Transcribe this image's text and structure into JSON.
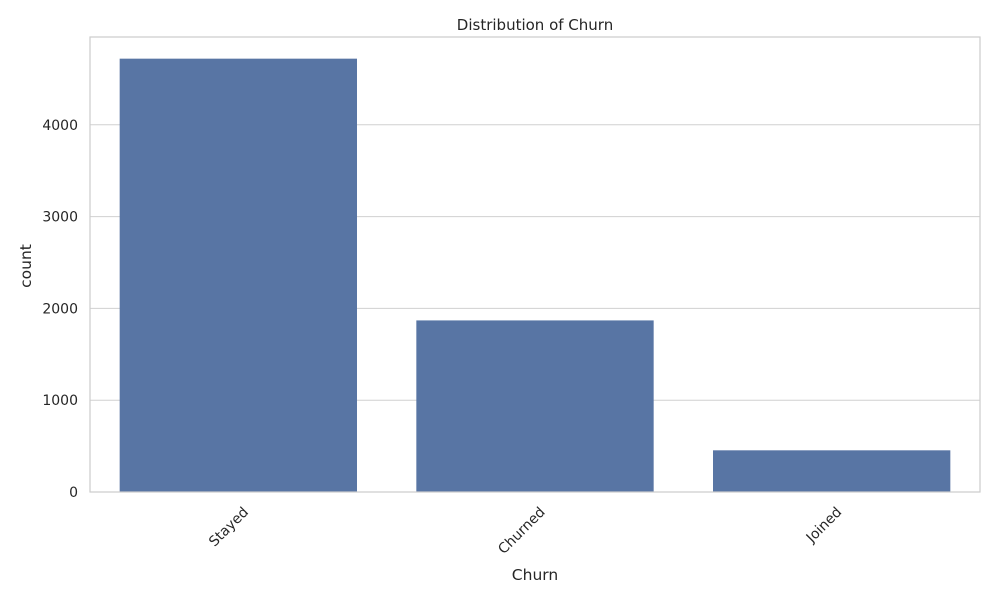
{
  "chart_data": {
    "type": "bar",
    "title": "Distribution of Churn",
    "xlabel": "Churn",
    "ylabel": "count",
    "categories": [
      "Stayed",
      "Churned",
      "Joined"
    ],
    "values": [
      4720,
      1869,
      454
    ],
    "ylim": [
      0,
      4956
    ],
    "yticks": [
      0,
      1000,
      2000,
      3000,
      4000
    ],
    "ytick_labels": [
      "0",
      "1000",
      "2000",
      "3000",
      "4000"
    ],
    "grid": "horizontal",
    "bar_color": "#5875a4",
    "grid_color": "#d0d0d0",
    "x_tick_rotation": "45 degrees"
  }
}
